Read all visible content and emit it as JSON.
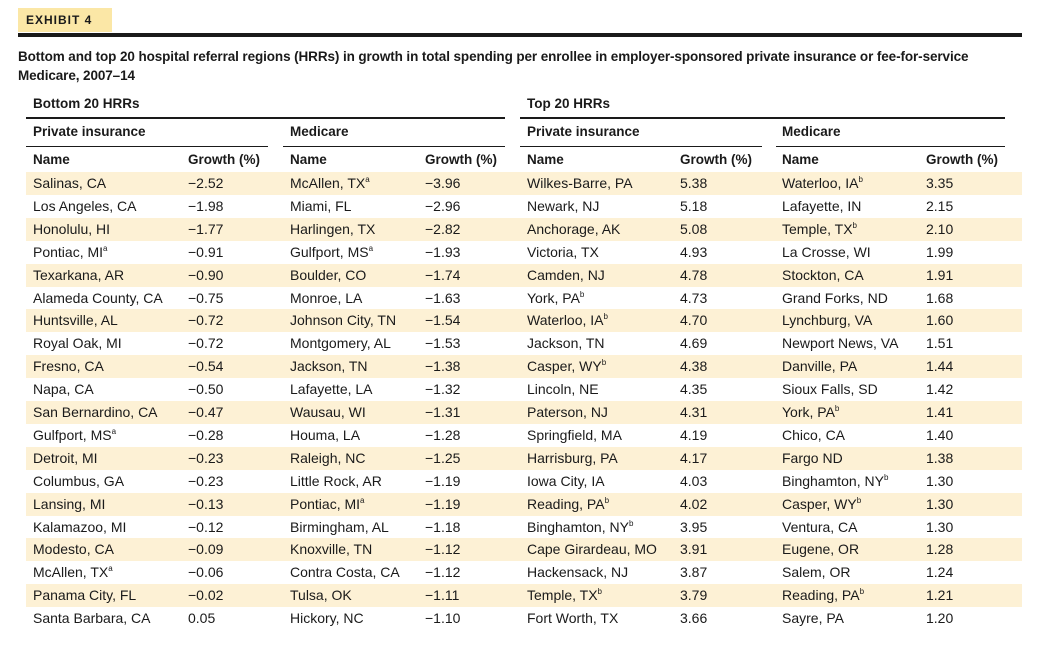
{
  "exhibit": "EXHIBIT 4",
  "title": "Bottom and top 20 hospital referral regions (HRRs) in growth in total spending per enrollee in employer-sponsored private insurance or fee-for-service Medicare, 2007–14",
  "bottom": {
    "label": "Bottom 20 HRRs",
    "private": {
      "label": "Private insurance",
      "name_header": "Name",
      "growth_header": "Growth (%)",
      "rows": [
        {
          "name": "Salinas, CA",
          "sup": "",
          "growth": "−2.52"
        },
        {
          "name": "Los Angeles, CA",
          "sup": "",
          "growth": "−1.98"
        },
        {
          "name": "Honolulu, HI",
          "sup": "",
          "growth": "−1.77"
        },
        {
          "name": "Pontiac, MI",
          "sup": "a",
          "growth": "−0.91"
        },
        {
          "name": "Texarkana, AR",
          "sup": "",
          "growth": "−0.90"
        },
        {
          "name": "Alameda County, CA",
          "sup": "",
          "growth": "−0.75"
        },
        {
          "name": "Huntsville, AL",
          "sup": "",
          "growth": "−0.72"
        },
        {
          "name": "Royal Oak, MI",
          "sup": "",
          "growth": "−0.72"
        },
        {
          "name": "Fresno, CA",
          "sup": "",
          "growth": "−0.54"
        },
        {
          "name": "Napa, CA",
          "sup": "",
          "growth": "−0.50"
        },
        {
          "name": "San Bernardino, CA",
          "sup": "",
          "growth": "−0.47"
        },
        {
          "name": "Gulfport, MS",
          "sup": "a",
          "growth": "−0.28"
        },
        {
          "name": "Detroit, MI",
          "sup": "",
          "growth": "−0.23"
        },
        {
          "name": "Columbus, GA",
          "sup": "",
          "growth": "−0.23"
        },
        {
          "name": "Lansing, MI",
          "sup": "",
          "growth": "−0.13"
        },
        {
          "name": "Kalamazoo, MI",
          "sup": "",
          "growth": "−0.12"
        },
        {
          "name": "Modesto, CA",
          "sup": "",
          "growth": "−0.09"
        },
        {
          "name": "McAllen, TX",
          "sup": "a",
          "growth": "−0.06"
        },
        {
          "name": "Panama City, FL",
          "sup": "",
          "growth": "−0.02"
        },
        {
          "name": "Santa Barbara, CA",
          "sup": "",
          "growth": "0.05"
        }
      ]
    },
    "medicare": {
      "label": "Medicare",
      "name_header": "Name",
      "growth_header": "Growth (%)",
      "rows": [
        {
          "name": "McAllen, TX",
          "sup": "a",
          "growth": "−3.96"
        },
        {
          "name": "Miami, FL",
          "sup": "",
          "growth": "−2.96"
        },
        {
          "name": "Harlingen, TX",
          "sup": "",
          "growth": "−2.82"
        },
        {
          "name": "Gulfport, MS",
          "sup": "a",
          "growth": "−1.93"
        },
        {
          "name": "Boulder, CO",
          "sup": "",
          "growth": "−1.74"
        },
        {
          "name": "Monroe, LA",
          "sup": "",
          "growth": "−1.63"
        },
        {
          "name": "Johnson City, TN",
          "sup": "",
          "growth": "−1.54"
        },
        {
          "name": "Montgomery, AL",
          "sup": "",
          "growth": "−1.53"
        },
        {
          "name": "Jackson, TN",
          "sup": "",
          "growth": "−1.38"
        },
        {
          "name": "Lafayette, LA",
          "sup": "",
          "growth": "−1.32"
        },
        {
          "name": "Wausau, WI",
          "sup": "",
          "growth": "−1.31"
        },
        {
          "name": "Houma, LA",
          "sup": "",
          "growth": "−1.28"
        },
        {
          "name": "Raleigh, NC",
          "sup": "",
          "growth": "−1.25"
        },
        {
          "name": "Little Rock, AR",
          "sup": "",
          "growth": "−1.19"
        },
        {
          "name": "Pontiac, MI",
          "sup": "a",
          "growth": "−1.19"
        },
        {
          "name": "Birmingham, AL",
          "sup": "",
          "growth": "−1.18"
        },
        {
          "name": "Knoxville, TN",
          "sup": "",
          "growth": "−1.12"
        },
        {
          "name": "Contra Costa, CA",
          "sup": "",
          "growth": "−1.12"
        },
        {
          "name": "Tulsa, OK",
          "sup": "",
          "growth": "−1.11"
        },
        {
          "name": "Hickory, NC",
          "sup": "",
          "growth": "−1.10"
        }
      ]
    }
  },
  "top": {
    "label": "Top 20 HRRs",
    "private": {
      "label": "Private insurance",
      "name_header": "Name",
      "growth_header": "Growth (%)",
      "rows": [
        {
          "name": "Wilkes-Barre, PA",
          "sup": "",
          "growth": "5.38"
        },
        {
          "name": "Newark, NJ",
          "sup": "",
          "growth": "5.18"
        },
        {
          "name": "Anchorage, AK",
          "sup": "",
          "growth": "5.08"
        },
        {
          "name": "Victoria, TX",
          "sup": "",
          "growth": "4.93"
        },
        {
          "name": "Camden, NJ",
          "sup": "",
          "growth": "4.78"
        },
        {
          "name": "York, PA",
          "sup": "b",
          "growth": "4.73"
        },
        {
          "name": "Waterloo, IA",
          "sup": "b",
          "growth": "4.70"
        },
        {
          "name": "Jackson, TN",
          "sup": "",
          "growth": "4.69"
        },
        {
          "name": "Casper, WY",
          "sup": "b",
          "growth": "4.38"
        },
        {
          "name": "Lincoln, NE",
          "sup": "",
          "growth": "4.35"
        },
        {
          "name": "Paterson, NJ",
          "sup": "",
          "growth": "4.31"
        },
        {
          "name": "Springfield, MA",
          "sup": "",
          "growth": "4.19"
        },
        {
          "name": "Harrisburg, PA",
          "sup": "",
          "growth": "4.17"
        },
        {
          "name": "Iowa City, IA",
          "sup": "",
          "growth": "4.03"
        },
        {
          "name": "Reading, PA",
          "sup": "b",
          "growth": "4.02"
        },
        {
          "name": "Binghamton, NY",
          "sup": "b",
          "growth": "3.95"
        },
        {
          "name": "Cape Girardeau, MO",
          "sup": "",
          "growth": "3.91"
        },
        {
          "name": "Hackensack, NJ",
          "sup": "",
          "growth": "3.87"
        },
        {
          "name": "Temple, TX",
          "sup": "b",
          "growth": "3.79"
        },
        {
          "name": "Fort Worth, TX",
          "sup": "",
          "growth": "3.66"
        }
      ]
    },
    "medicare": {
      "label": "Medicare",
      "name_header": "Name",
      "growth_header": "Growth (%)",
      "rows": [
        {
          "name": "Waterloo, IA",
          "sup": "b",
          "growth": "3.35"
        },
        {
          "name": "Lafayette, IN",
          "sup": "",
          "growth": "2.15"
        },
        {
          "name": "Temple, TX",
          "sup": "b",
          "growth": "2.10"
        },
        {
          "name": "La Crosse, WI",
          "sup": "",
          "growth": "1.99"
        },
        {
          "name": "Stockton, CA",
          "sup": "",
          "growth": "1.91"
        },
        {
          "name": "Grand Forks, ND",
          "sup": "",
          "growth": "1.68"
        },
        {
          "name": "Lynchburg, VA",
          "sup": "",
          "growth": "1.60"
        },
        {
          "name": "Newport News, VA",
          "sup": "",
          "growth": "1.51"
        },
        {
          "name": "Danville, PA",
          "sup": "",
          "growth": "1.44"
        },
        {
          "name": "Sioux Falls, SD",
          "sup": "",
          "growth": "1.42"
        },
        {
          "name": "York, PA",
          "sup": "b",
          "growth": "1.41"
        },
        {
          "name": "Chico, CA",
          "sup": "",
          "growth": "1.40"
        },
        {
          "name": "Fargo ND",
          "sup": "",
          "growth": "1.38"
        },
        {
          "name": "Binghamton, NY",
          "sup": "b",
          "growth": "1.30"
        },
        {
          "name": "Casper, WY",
          "sup": "b",
          "growth": "1.30"
        },
        {
          "name": "Ventura, CA",
          "sup": "",
          "growth": "1.30"
        },
        {
          "name": "Eugene, OR",
          "sup": "",
          "growth": "1.28"
        },
        {
          "name": "Salem, OR",
          "sup": "",
          "growth": "1.24"
        },
        {
          "name": "Reading, PA",
          "sup": "b",
          "growth": "1.21"
        },
        {
          "name": "Sayre, PA",
          "sup": "",
          "growth": "1.20"
        }
      ]
    }
  }
}
